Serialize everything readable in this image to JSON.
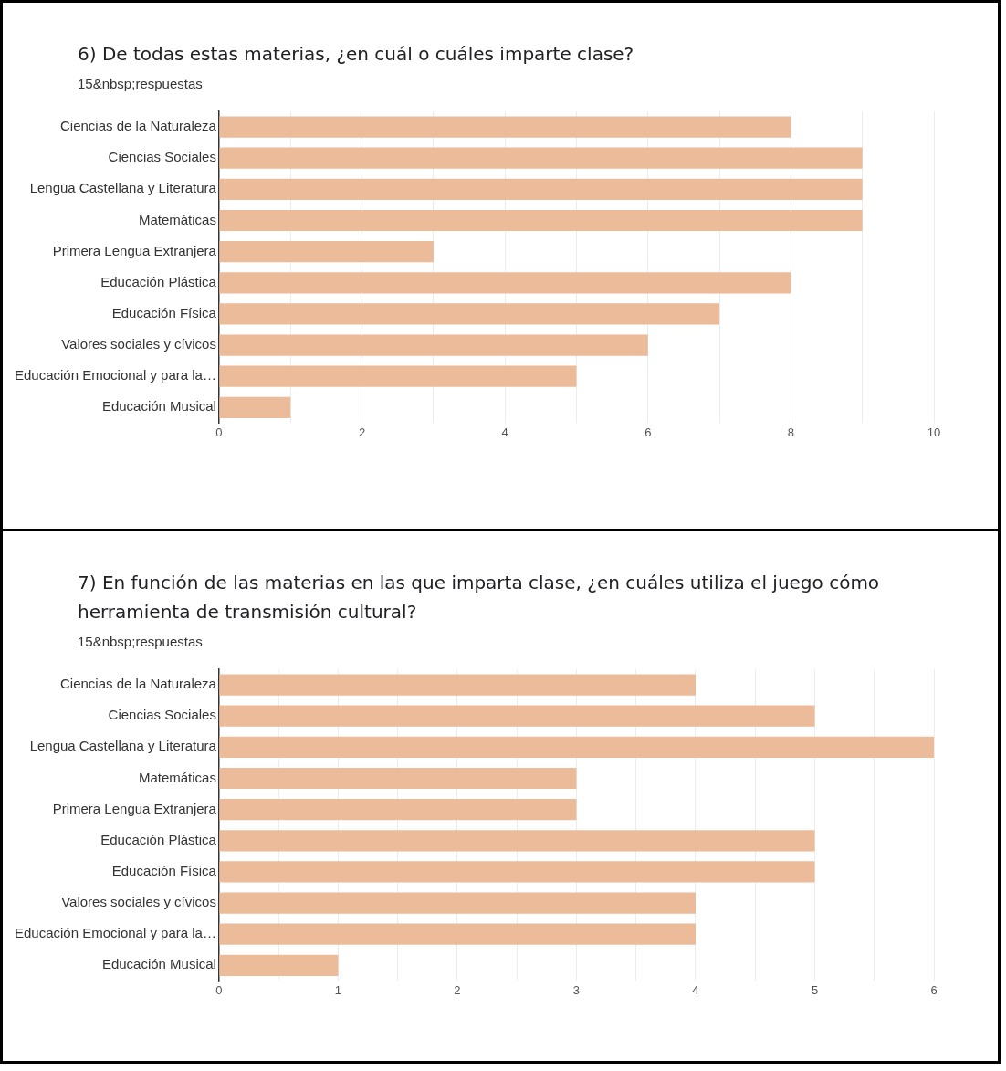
{
  "chart_data": [
    {
      "type": "bar",
      "orientation": "horizontal",
      "title": "6) De todas estas materias, ¿en cuál o cuáles imparte clase?",
      "subtitle": "15&nbsp;respuestas",
      "categories": [
        "Ciencias de la Naturaleza",
        "Ciencias Sociales",
        "Lengua Castellana y Literatura",
        "Matemáticas",
        "Primera Lengua Extranjera",
        "Educación Plástica",
        "Educación Física",
        "Valores sociales y cívicos",
        "Educación Emocional y para la…",
        "Educación Musical"
      ],
      "values": [
        8,
        9,
        9,
        9,
        3,
        8,
        7,
        6,
        5,
        1
      ],
      "color": "#ebbb9a",
      "xlim": [
        0,
        10
      ],
      "xticks": [
        0,
        {
          "value": 1,
          "label": null
        },
        2,
        {
          "value": 3,
          "label": null
        },
        4,
        {
          "value": 5,
          "label": null
        },
        6,
        {
          "value": 7,
          "label": null
        },
        8,
        {
          "value": 9,
          "label": null
        },
        10
      ],
      "grid": "x",
      "legend": false
    },
    {
      "type": "bar",
      "orientation": "horizontal",
      "title": "7) En función de las materias en las que imparta clase, ¿en cuáles utiliza el juego cómo herramienta de transmisión cultural?",
      "subtitle": "15&nbsp;respuestas",
      "categories": [
        "Ciencias de la Naturaleza",
        "Ciencias Sociales",
        "Lengua Castellana y Literatura",
        "Matemáticas",
        "Primera Lengua Extranjera",
        "Educación Plástica",
        "Educación Física",
        "Valores sociales y cívicos",
        "Educación Emocional y para la…",
        "Educación Musical"
      ],
      "values": [
        4,
        5,
        6,
        3,
        3,
        5,
        5,
        4,
        4,
        1
      ],
      "color": "#ebbb9a",
      "xlim": [
        0,
        6
      ],
      "xticks": [
        0,
        {
          "value": 0.5,
          "label": null
        },
        1,
        {
          "value": 1.5,
          "label": null
        },
        2,
        {
          "value": 2.5,
          "label": null
        },
        3,
        {
          "value": 3.5,
          "label": null
        },
        4,
        {
          "value": 4.5,
          "label": null
        },
        5,
        {
          "value": 5.5,
          "label": null
        },
        6
      ],
      "grid": "x",
      "legend": false
    }
  ]
}
